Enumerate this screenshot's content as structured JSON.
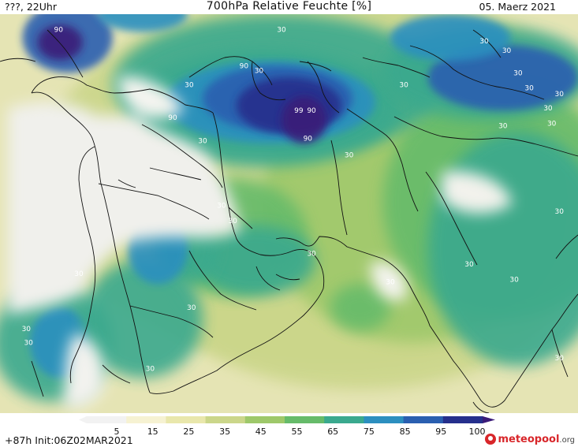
{
  "header": {
    "left": "???, 22Uhr",
    "title": "700hPa Relative Feuchte [%]",
    "date": "05. Maerz 2021"
  },
  "footer": {
    "init": "+87h  Init:06Z02MAR2021",
    "brand_name": "meteopool",
    "brand_tld": ".org"
  },
  "colorbar": {
    "ticks": [
      "5",
      "15",
      "25",
      "35",
      "45",
      "55",
      "65",
      "75",
      "85",
      "95",
      "100"
    ],
    "colors": [
      "#f2f2f2",
      "#f6f2d2",
      "#e9e7ac",
      "#cbd68a",
      "#9ec86a",
      "#66bb6a",
      "#3aa98e",
      "#2c8fbf",
      "#2a5fb0",
      "#252f8c",
      "#3a1a78"
    ]
  },
  "contour_labels": [
    {
      "text": "90",
      "lon": 22.8,
      "lat": 40.5
    },
    {
      "text": "30",
      "lon": 52.5,
      "lat": 40.5
    },
    {
      "text": "30",
      "lon": 79.5,
      "lat": 39.5
    },
    {
      "text": "30",
      "lon": 82.5,
      "lat": 38.7
    },
    {
      "text": "30",
      "lon": 84.0,
      "lat": 36.8
    },
    {
      "text": "90",
      "lon": 47.5,
      "lat": 37.4
    },
    {
      "text": "30",
      "lon": 49.5,
      "lat": 37.0
    },
    {
      "text": "30",
      "lon": 40.2,
      "lat": 35.8
    },
    {
      "text": "30",
      "lon": 68.8,
      "lat": 35.8
    },
    {
      "text": "30",
      "lon": 85.5,
      "lat": 35.5
    },
    {
      "text": "30",
      "lon": 89.5,
      "lat": 35.0
    },
    {
      "text": "30",
      "lon": 88.0,
      "lat": 33.8
    },
    {
      "text": "99",
      "lon": 54.8,
      "lat": 33.6
    },
    {
      "text": "90",
      "lon": 56.5,
      "lat": 33.6
    },
    {
      "text": "90",
      "lon": 38.0,
      "lat": 33.0
    },
    {
      "text": "30",
      "lon": 82.0,
      "lat": 32.3
    },
    {
      "text": "30",
      "lon": 88.5,
      "lat": 32.5
    },
    {
      "text": "90",
      "lon": 56.0,
      "lat": 31.2
    },
    {
      "text": "30",
      "lon": 42.0,
      "lat": 31.0
    },
    {
      "text": "30",
      "lon": 61.5,
      "lat": 29.8
    },
    {
      "text": "30",
      "lon": 44.5,
      "lat": 25.5
    },
    {
      "text": "30",
      "lon": 46.0,
      "lat": 24.2
    },
    {
      "text": "30",
      "lon": 89.5,
      "lat": 25.0
    },
    {
      "text": "30",
      "lon": 56.5,
      "lat": 21.4
    },
    {
      "text": "30",
      "lon": 77.5,
      "lat": 20.5
    },
    {
      "text": "30",
      "lon": 25.5,
      "lat": 19.7
    },
    {
      "text": "30",
      "lon": 83.5,
      "lat": 19.2
    },
    {
      "text": "30",
      "lon": 67.0,
      "lat": 19.0
    },
    {
      "text": "30",
      "lon": 40.5,
      "lat": 16.8
    },
    {
      "text": "30",
      "lon": 18.5,
      "lat": 15.0
    },
    {
      "text": "30",
      "lon": 18.8,
      "lat": 13.8
    },
    {
      "text": "30",
      "lon": 89.5,
      "lat": 12.5
    },
    {
      "text": "30",
      "lon": 35.0,
      "lat": 11.6
    }
  ],
  "humidity_blobs": [
    {
      "lon": 60,
      "lat": 28,
      "rx": 40,
      "ry": 16,
      "level": 0
    },
    {
      "lon": 63,
      "lat": 20,
      "rx": 28,
      "ry": 10,
      "level": 0
    },
    {
      "lon": 70,
      "lat": 26,
      "rx": 20,
      "ry": 12,
      "level": 1
    },
    {
      "lon": 82,
      "lat": 26,
      "rx": 16,
      "ry": 10,
      "level": 2
    },
    {
      "lon": 84,
      "lat": 22,
      "rx": 12,
      "ry": 10,
      "level": 3
    },
    {
      "lon": 46,
      "lat": 23,
      "rx": 10,
      "ry": 5,
      "level": 2
    },
    {
      "lon": 49,
      "lat": 21,
      "rx": 8,
      "ry": 3,
      "level": 3
    },
    {
      "lon": 40,
      "lat": 22,
      "rx": 4,
      "ry": 3,
      "level": 4
    },
    {
      "lon": 63,
      "lat": 17,
      "rx": 4,
      "ry": 2,
      "level": 2
    },
    {
      "lon": 22,
      "lat": 14,
      "rx": 8,
      "ry": 5,
      "level": 4
    },
    {
      "lon": 23,
      "lat": 14,
      "rx": 4,
      "ry": 3,
      "level": 5
    },
    {
      "lon": 34,
      "lat": 16,
      "rx": 8,
      "ry": 5,
      "level": 4
    },
    {
      "lon": 36,
      "lat": 22,
      "rx": 4,
      "ry": 3,
      "level": 5
    },
    {
      "lon": 52,
      "lat": 36,
      "rx": 22,
      "ry": 6,
      "level": 3
    },
    {
      "lon": 50,
      "lat": 34,
      "rx": 18,
      "ry": 5,
      "level": 4
    },
    {
      "lon": 51,
      "lat": 34.5,
      "rx": 14,
      "ry": 3.5,
      "level": 5
    },
    {
      "lon": 52,
      "lat": 34.8,
      "rx": 10,
      "ry": 2.8,
      "level": 6
    },
    {
      "lon": 53.5,
      "lat": 34.2,
      "rx": 7,
      "ry": 2.4,
      "level": 7
    },
    {
      "lon": 55.5,
      "lat": 33,
      "rx": 3,
      "ry": 2,
      "level": 8
    },
    {
      "lon": 24,
      "lat": 40,
      "rx": 6,
      "ry": 3,
      "level": 6
    },
    {
      "lon": 23,
      "lat": 39.6,
      "rx": 3,
      "ry": 1.5,
      "level": 8
    },
    {
      "lon": 80,
      "lat": 37,
      "rx": 14,
      "ry": 4,
      "level": 4
    },
    {
      "lon": 82,
      "lat": 36.6,
      "rx": 10,
      "ry": 2.8,
      "level": 6
    },
    {
      "lon": 75,
      "lat": 40,
      "rx": 8,
      "ry": 2,
      "level": 5
    },
    {
      "lon": 34,
      "lat": 42,
      "rx": 6,
      "ry": 1.5,
      "level": 5
    }
  ]
}
